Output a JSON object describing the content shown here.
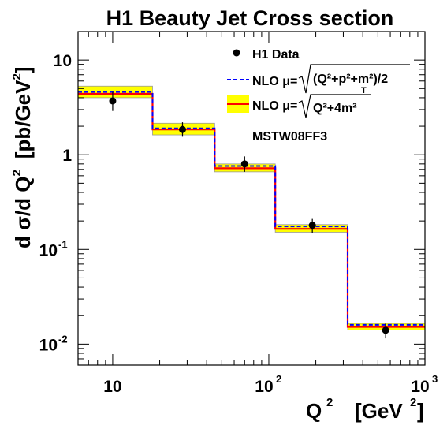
{
  "chart_data": {
    "type": "line",
    "title": "H1 Beauty Jet Cross section",
    "xlabel": "Q",
    "xlabel_sup": "2",
    "xlabel_unit": "[GeV",
    "xlabel_unit_sup": "2",
    "xlabel_unit_close": "]",
    "ylabel_main": "d σ/d Q",
    "ylabel_sup": "2",
    "ylabel_unit": "[pb/GeV",
    "ylabel_unit_sup": "2",
    "ylabel_unit_close": "]",
    "x_scale": "log",
    "y_scale": "log",
    "xlim": [
      6,
      1000
    ],
    "ylim": [
      0.006,
      20
    ],
    "x_ticks": [
      {
        "value": 10,
        "base": "10",
        "exp": ""
      },
      {
        "value": 100,
        "base": "10",
        "exp": "2"
      },
      {
        "value": 1000,
        "base": "10",
        "exp": "3"
      }
    ],
    "y_ticks": [
      {
        "value": 0.01,
        "base": "10",
        "exp": "-2"
      },
      {
        "value": 0.1,
        "base": "10",
        "exp": "-1"
      },
      {
        "value": 1,
        "base": "1",
        "exp": ""
      },
      {
        "value": 10,
        "base": "10",
        "exp": ""
      }
    ],
    "bins": [
      {
        "lo": 6,
        "hi": 18
      },
      {
        "lo": 18,
        "hi": 45
      },
      {
        "lo": 45,
        "hi": 110
      },
      {
        "lo": 110,
        "hi": 320
      },
      {
        "lo": 320,
        "hi": 1000
      }
    ],
    "series": [
      {
        "name": "H1 Data",
        "kind": "points",
        "color": "#000000",
        "x": [
          10,
          28,
          70,
          190,
          560
        ],
        "y": [
          3.7,
          1.85,
          0.8,
          0.18,
          0.014
        ],
        "err_lo": [
          2.9,
          1.55,
          0.66,
          0.15,
          0.0115
        ],
        "err_hi": [
          4.6,
          2.2,
          0.96,
          0.21,
          0.0165
        ]
      },
      {
        "name": "NLO μ=√((Q²+p_T²+m²)/2)",
        "kind": "step",
        "color": "#0000ff",
        "style": "dashed",
        "values": [
          4.6,
          1.9,
          0.76,
          0.175,
          0.016
        ]
      },
      {
        "name": "NLO μ=√(Q²+4m²)",
        "kind": "step-band",
        "color": "#ff0000",
        "band_color": "#ffff00",
        "values": [
          4.4,
          1.85,
          0.72,
          0.165,
          0.0152
        ],
        "band_lo": [
          4.0,
          1.62,
          0.66,
          0.152,
          0.0141
        ],
        "band_hi": [
          5.3,
          2.15,
          0.8,
          0.183,
          0.0166
        ]
      }
    ],
    "legend": {
      "placement": "top-right",
      "entries": [
        {
          "label": "H1 Data"
        },
        {
          "prefix": "NLO μ=",
          "radicand": "(Q²+p²+m²)/2",
          "sub": "T",
          "note": "p_T squared"
        },
        {
          "prefix": "NLO μ=",
          "radicand": "Q²+4m²"
        },
        {
          "label": "MSTW08FF3"
        }
      ]
    },
    "grid": false
  }
}
